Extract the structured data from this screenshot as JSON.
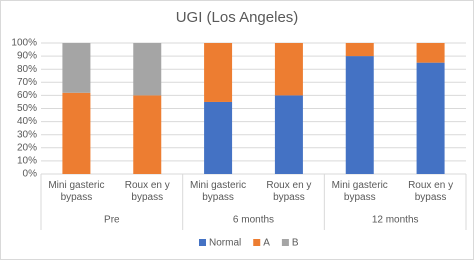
{
  "chart_data": {
    "type": "stacked_bar",
    "title": "UGI (Los Angeles)",
    "categories": [
      "Mini gasteric bypass",
      "Roux en y bypass",
      "Mini gasteric bypass",
      "Roux en y bypass",
      "Mini gasteric bypass",
      "Roux en y bypass"
    ],
    "groups": [
      "Pre",
      "6 months",
      "12 months"
    ],
    "series": [
      {
        "name": "Normal",
        "color": "#4472c4",
        "values": [
          0,
          0,
          55,
          60,
          90,
          85
        ]
      },
      {
        "name": "A",
        "color": "#ed7d31",
        "values": [
          62,
          60,
          45,
          40,
          10,
          15
        ]
      },
      {
        "name": "B",
        "color": "#a5a5a5",
        "values": [
          38,
          40,
          0,
          0,
          0,
          0
        ]
      }
    ],
    "ylim": [
      0,
      100
    ],
    "yticks": [
      {
        "value": 0,
        "label": "0%"
      },
      {
        "value": 10,
        "label": "10%"
      },
      {
        "value": 20,
        "label": "20%"
      },
      {
        "value": 30,
        "label": "30%"
      },
      {
        "value": 40,
        "label": "40%"
      },
      {
        "value": 50,
        "label": "50%"
      },
      {
        "value": 60,
        "label": "60%"
      },
      {
        "value": 70,
        "label": "70%"
      },
      {
        "value": 80,
        "label": "80%"
      },
      {
        "value": 90,
        "label": "90%"
      },
      {
        "value": 100,
        "label": "100%"
      }
    ],
    "grid": true,
    "legend": "bottom"
  }
}
